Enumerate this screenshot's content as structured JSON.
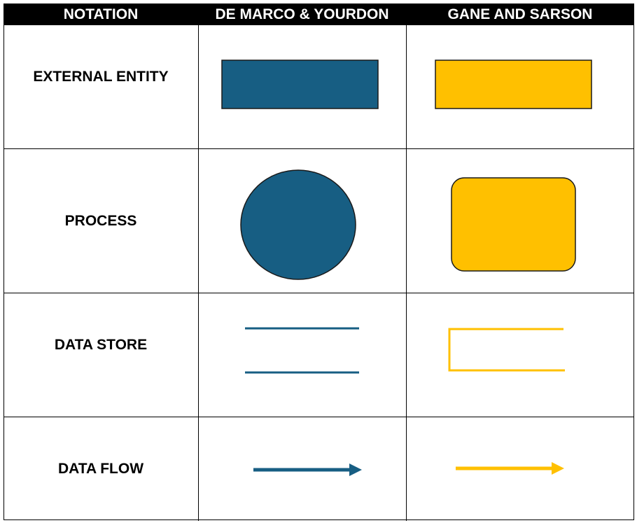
{
  "header": {
    "col1": "NOTATION",
    "col2": "DE MARCO & YOURDON",
    "col3": "GANE AND SARSON"
  },
  "rows": [
    {
      "label": "EXTERNAL ENTITY"
    },
    {
      "label": "PROCESS"
    },
    {
      "label": "DATA STORE"
    },
    {
      "label": "DATA FLOW"
    }
  ],
  "colors": {
    "demarco": "#175E83",
    "gane": "#FFC000",
    "header_bg": "#000000",
    "header_text": "#FFFFFF"
  },
  "icons": {
    "demarco_external_entity": "rectangle",
    "demarco_process": "circle",
    "demarco_data_store": "two-parallel-lines",
    "demarco_data_flow": "arrow",
    "gane_external_entity": "rectangle",
    "gane_process": "rounded-rectangle",
    "gane_data_store": "open-ended-rectangle",
    "gane_data_flow": "arrow"
  }
}
